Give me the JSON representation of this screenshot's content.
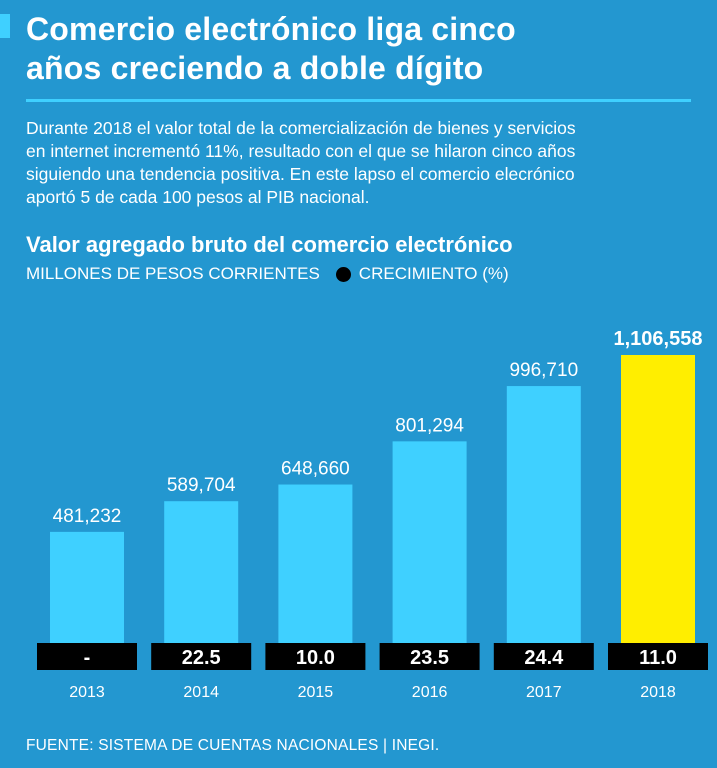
{
  "header": {
    "title": "Comercio electrónico liga cinco\naños creciendo a doble dígito",
    "intro": "Durante 2018 el valor total de la comercialización de bienes y servicios\nen internet incrementó 11%, resultado con el que se hilaron cinco años\nsiguiendo una tendencia positiva. En este lapso el comercio elecrónico\naportó 5 de cada 100 pesos al PIB nacional."
  },
  "footer": {
    "source": "FUENTE: SISTEMA DE CUENTAS NACIONALES | INEGI."
  },
  "colors": {
    "background": "#2397d0",
    "bar": "#3fd0ff",
    "highlight_bar": "#ffee00",
    "growth_box": "#000000"
  },
  "chart_data": {
    "type": "bar",
    "title": "Valor agregado bruto del comercio electrónico",
    "ylabel": "MILLONES DE PESOS CORRIENTES",
    "growth_label": "CRECIMIENTO (%)",
    "categories": [
      "2013",
      "2014",
      "2015",
      "2016",
      "2017",
      "2018"
    ],
    "values": [
      481232,
      589704,
      648660,
      801294,
      996710,
      1106558
    ],
    "value_labels": [
      "481,232",
      "589,704",
      "648,660",
      "801,294",
      "996,710",
      "1,106,558"
    ],
    "growth": [
      "-",
      "22.5",
      "10.0",
      "23.5",
      "24.4",
      "11.0"
    ],
    "highlight_index": 5,
    "ylim": [
      0,
      1106558
    ]
  }
}
